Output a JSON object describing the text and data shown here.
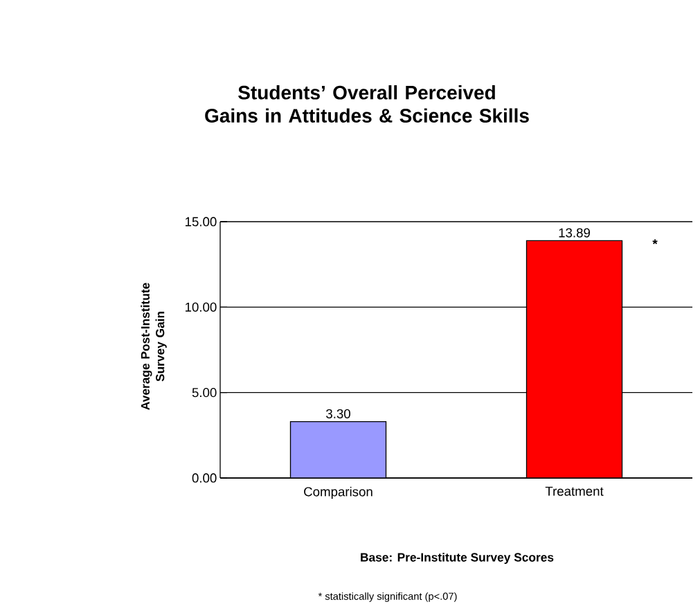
{
  "chart_data": {
    "type": "bar",
    "title": "Students’ Overall Perceived\nGains in Attitudes & Science Skills",
    "ylabel": "Average Post-Institute\nSurvey Gain",
    "xlabel": "Base: Pre-Institute Survey Scores",
    "categories": [
      "Comparison",
      "Treatment"
    ],
    "values": [
      3.3,
      13.89
    ],
    "colors": [
      "#9999ff",
      "#ff0000"
    ],
    "value_labels": [
      "3.30",
      "13.89"
    ],
    "ylim": [
      0,
      15
    ],
    "yticks": [
      {
        "value": 0,
        "label": "0.00"
      },
      {
        "value": 5,
        "label": "5.00"
      },
      {
        "value": 10,
        "label": "10.00"
      },
      {
        "value": 15,
        "label": "15.00"
      }
    ],
    "grid": "y",
    "annotations": [
      "*",
      "* statistically significant (p<.07)"
    ]
  }
}
